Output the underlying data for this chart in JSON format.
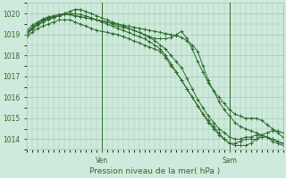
{
  "xlabel": "Pression niveau de la mer( hPa )",
  "bg_color": "#ceeadc",
  "grid_color": "#a0c8b0",
  "line_color": "#2d6b2d",
  "ylim": [
    1013.5,
    1020.5
  ],
  "xlim": [
    0,
    48
  ],
  "ven_x": 14,
  "sam_x": 38,
  "yticks": [
    1014,
    1015,
    1016,
    1017,
    1018,
    1019,
    1020
  ],
  "series": [
    [
      1018.9,
      1019.1,
      1019.3,
      1019.4,
      1019.5,
      1019.6,
      1019.7,
      1019.7,
      1019.7,
      1019.6,
      1019.5,
      1019.4,
      1019.3,
      1019.2,
      1019.15,
      1019.1,
      1019.05,
      1019.0,
      1018.9,
      1018.8,
      1018.7,
      1018.6,
      1018.5,
      1018.4,
      1018.3,
      1018.2,
      1017.9,
      1017.5,
      1017.2,
      1016.8,
      1016.4,
      1016.0,
      1015.6,
      1015.2,
      1014.9,
      1014.6,
      1014.3,
      1014.0,
      1013.8,
      1013.7,
      1013.7,
      1013.7,
      1013.8,
      1014.0,
      1014.2,
      1014.3,
      1014.4,
      1014.4,
      1014.3
    ],
    [
      1019.0,
      1019.25,
      1019.45,
      1019.6,
      1019.7,
      1019.8,
      1019.9,
      1019.95,
      1020.0,
      1020.0,
      1019.95,
      1019.9,
      1019.8,
      1019.7,
      1019.6,
      1019.5,
      1019.4,
      1019.3,
      1019.2,
      1019.1,
      1019.0,
      1018.9,
      1018.8,
      1018.65,
      1018.5,
      1018.3,
      1018.0,
      1017.6,
      1017.2,
      1016.8,
      1016.4,
      1016.0,
      1015.6,
      1015.2,
      1014.8,
      1014.5,
      1014.2,
      1014.0,
      1013.8,
      1013.8,
      1013.9,
      1014.0,
      1014.0,
      1014.0,
      1014.1,
      1014.1,
      1014.0,
      1013.9,
      1013.8
    ],
    [
      1019.05,
      1019.3,
      1019.5,
      1019.65,
      1019.75,
      1019.85,
      1019.9,
      1020.0,
      1020.1,
      1020.2,
      1020.2,
      1020.1,
      1020.0,
      1019.9,
      1019.8,
      1019.7,
      1019.6,
      1019.5,
      1019.4,
      1019.3,
      1019.2,
      1019.1,
      1019.0,
      1018.85,
      1018.7,
      1018.5,
      1018.3,
      1018.0,
      1017.7,
      1017.4,
      1016.9,
      1016.4,
      1015.9,
      1015.5,
      1015.1,
      1014.8,
      1014.5,
      1014.3,
      1014.1,
      1014.0,
      1014.0,
      1014.1,
      1014.1,
      1014.2,
      1014.2,
      1014.1,
      1014.0,
      1013.9,
      1013.8
    ],
    [
      1019.1,
      1019.35,
      1019.55,
      1019.7,
      1019.8,
      1019.85,
      1019.9,
      1019.95,
      1019.95,
      1019.9,
      1019.85,
      1019.8,
      1019.75,
      1019.7,
      1019.65,
      1019.6,
      1019.5,
      1019.4,
      1019.35,
      1019.3,
      1019.2,
      1019.1,
      1019.0,
      1018.9,
      1018.8,
      1018.8,
      1018.8,
      1018.85,
      1019.0,
      1019.15,
      1018.8,
      1018.3,
      1017.7,
      1017.2,
      1016.7,
      1016.3,
      1016.0,
      1015.7,
      1015.4,
      1015.2,
      1015.1,
      1015.0,
      1015.0,
      1015.0,
      1014.9,
      1014.7,
      1014.5,
      1014.3,
      1014.1
    ],
    [
      1019.2,
      1019.45,
      1019.6,
      1019.75,
      1019.85,
      1019.9,
      1019.95,
      1020.0,
      1019.95,
      1019.9,
      1019.85,
      1019.8,
      1019.75,
      1019.7,
      1019.65,
      1019.6,
      1019.55,
      1019.5,
      1019.45,
      1019.4,
      1019.35,
      1019.3,
      1019.25,
      1019.2,
      1019.15,
      1019.1,
      1019.05,
      1019.0,
      1018.95,
      1018.85,
      1018.7,
      1018.5,
      1018.2,
      1017.5,
      1016.8,
      1016.3,
      1015.8,
      1015.4,
      1015.1,
      1014.8,
      1014.6,
      1014.5,
      1014.4,
      1014.3,
      1014.2,
      1014.1,
      1013.9,
      1013.8,
      1013.7
    ]
  ]
}
